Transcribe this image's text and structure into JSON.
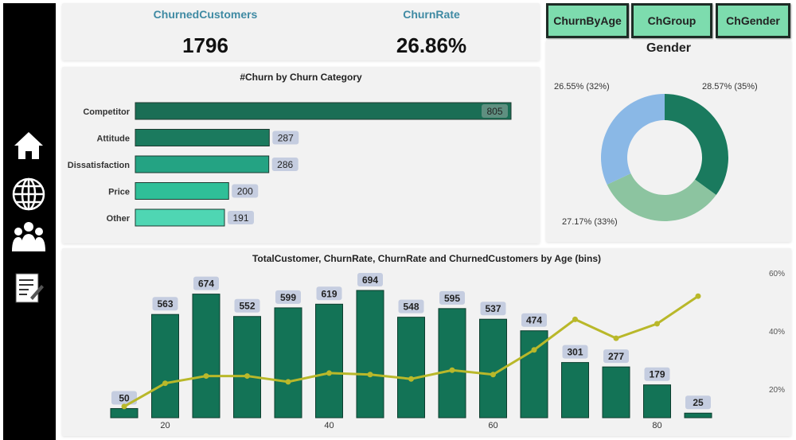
{
  "sidebar": {
    "items": [
      {
        "icon": "home-icon"
      },
      {
        "icon": "globe-icon"
      },
      {
        "icon": "users-icon"
      },
      {
        "icon": "report-icon"
      }
    ]
  },
  "kpis": {
    "churned_label": "ChurnedCustomers",
    "churned_value": "1796",
    "rate_label": "ChurnRate",
    "rate_value": "26.86%"
  },
  "nav_buttons": [
    "ChurnByAge",
    "ChGroup",
    "ChGender"
  ],
  "chart_data": [
    {
      "type": "bar",
      "orientation": "horizontal",
      "title": "#Churn by Churn Category",
      "categories": [
        "Competitor",
        "Attitude",
        "Dissatisfaction",
        "Price",
        "Other"
      ],
      "values": [
        805,
        287,
        286,
        200,
        191
      ],
      "colors": [
        "#1a6e55",
        "#1b7a5e",
        "#24a383",
        "#2fbf98",
        "#4fd6b3"
      ]
    },
    {
      "type": "pie",
      "variant": "donut",
      "title": "Gender",
      "slices": [
        {
          "label": "28.57% (35%)",
          "share": 35,
          "color": "#1a7a5e"
        },
        {
          "label": "27.17% (33%)",
          "share": 33,
          "color": "#8cc4a0"
        },
        {
          "label": "26.55% (32%)",
          "share": 32,
          "color": "#8ab8e6"
        }
      ]
    },
    {
      "type": "bar+line",
      "title": "TotalCustomer, ChurnRate, ChurnRate and ChurnedCustomers by Age (bins)",
      "x": [
        15,
        20,
        25,
        30,
        35,
        40,
        45,
        50,
        55,
        60,
        65,
        70,
        75,
        80,
        85
      ],
      "x_ticks": [
        "20",
        "40",
        "60",
        "80"
      ],
      "bars": [
        50,
        563,
        674,
        552,
        599,
        619,
        694,
        548,
        595,
        537,
        474,
        301,
        277,
        179,
        25
      ],
      "line": [
        14,
        22,
        24.5,
        24.5,
        22.5,
        25.5,
        25,
        23.5,
        26.5,
        25,
        33.5,
        44,
        37.5,
        42.5,
        52
      ],
      "y2_ticks": [
        "20%",
        "40%",
        "60%"
      ],
      "bar_color": "#137356",
      "line_color": "#b9b82a"
    }
  ]
}
